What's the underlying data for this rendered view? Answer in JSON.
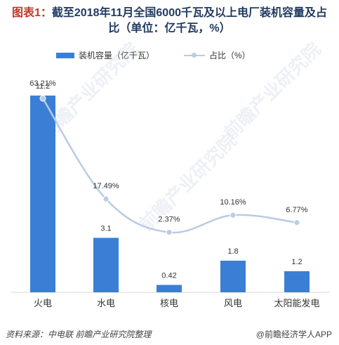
{
  "header": {
    "title_prefix": "图表1：",
    "title_line1": "截至2018年11月全国6000千瓦及以上电厂装机容量及占",
    "title_line2": "比（单位：亿千瓦，%）"
  },
  "legend": {
    "bar_label": "装机容量（亿千瓦）",
    "line_label": "占比（%）"
  },
  "footer": {
    "source": "资料来源：中电联  前瞻产业研究院整理",
    "brand": "@前瞻经济学人APP"
  },
  "watermark_text": "前瞻产业研究院",
  "colors": {
    "bar": "#3a7fd5",
    "line": "#b8cce4",
    "text": "#333333",
    "title": "#1f3a5f"
  },
  "chart_data": {
    "type": "bar",
    "categories": [
      "火电",
      "水电",
      "核电",
      "风电",
      "太阳能发电"
    ],
    "series": [
      {
        "name": "装机容量（亿千瓦）",
        "type": "bar",
        "values": [
          11.2,
          3.1,
          0.42,
          1.8,
          1.2
        ]
      },
      {
        "name": "占比（%）",
        "type": "line",
        "values": [
          63.21,
          17.49,
          2.37,
          10.16,
          6.77
        ],
        "labels": [
          "63.21%",
          "17.49%",
          "2.37%",
          "10.16%",
          "6.77%"
        ]
      }
    ],
    "bar_labels": [
      "11.2",
      "3.1",
      "0.42",
      "1.8",
      "1.2"
    ],
    "title": "截至2018年11月全国6000千瓦及以上电厂装机容量及占比（单位：亿千瓦，%）",
    "xlabel": "",
    "ylabel": "",
    "ylim": [
      0,
      11.2
    ],
    "y2lim": [
      0,
      63.21
    ],
    "grid": false,
    "legend_position": "top"
  }
}
